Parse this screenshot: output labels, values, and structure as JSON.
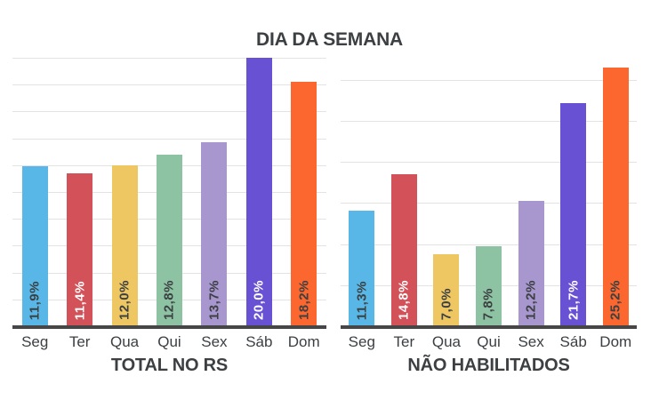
{
  "title": "DIA DA SEMANA",
  "colors": {
    "bars": [
      "#58b7e6",
      "#d35158",
      "#eec763",
      "#8dc3a2",
      "#a896ce",
      "#6951d4",
      "#fb672e"
    ],
    "value_label_colors": [
      "#3c4043",
      "#ffffff",
      "#3c4043",
      "#3c4043",
      "#3c4043",
      "#ffffff",
      "#3c4043"
    ],
    "gridline": "#e3e3e3",
    "axis": "#464646",
    "text": "#3c4043"
  },
  "chart_data": [
    {
      "type": "bar",
      "title": "TOTAL NO RS",
      "categories": [
        "Seg",
        "Ter",
        "Qua",
        "Qui",
        "Sex",
        "Sáb",
        "Dom"
      ],
      "values": [
        11.9,
        11.4,
        12.0,
        12.8,
        13.7,
        20.0,
        18.2
      ],
      "value_labels": [
        "11,9%",
        "11,4%",
        "12,0%",
        "12,8%",
        "13,7%",
        "20,0%",
        "18,2%"
      ],
      "xlabel": "TOTAL NO RS",
      "ylabel": "",
      "ylim": [
        0,
        20
      ],
      "grid_step": 2,
      "grid": "on",
      "legend": "none"
    },
    {
      "type": "bar",
      "title": "NÃO HABILITADOS",
      "categories": [
        "Seg",
        "Ter",
        "Qua",
        "Qui",
        "Sex",
        "Sáb",
        "Dom"
      ],
      "values": [
        11.3,
        14.8,
        7.0,
        7.8,
        12.2,
        21.7,
        25.2
      ],
      "value_labels": [
        "11,3%",
        "14,8%",
        "7,0%",
        "7,8%",
        "12,2%",
        "21,7%",
        "25,2%"
      ],
      "xlabel": "NÃO HABILITADOS",
      "ylabel": "",
      "ylim": [
        0,
        25.2
      ],
      "grid_step": 4,
      "grid": "on",
      "legend": "none"
    }
  ]
}
